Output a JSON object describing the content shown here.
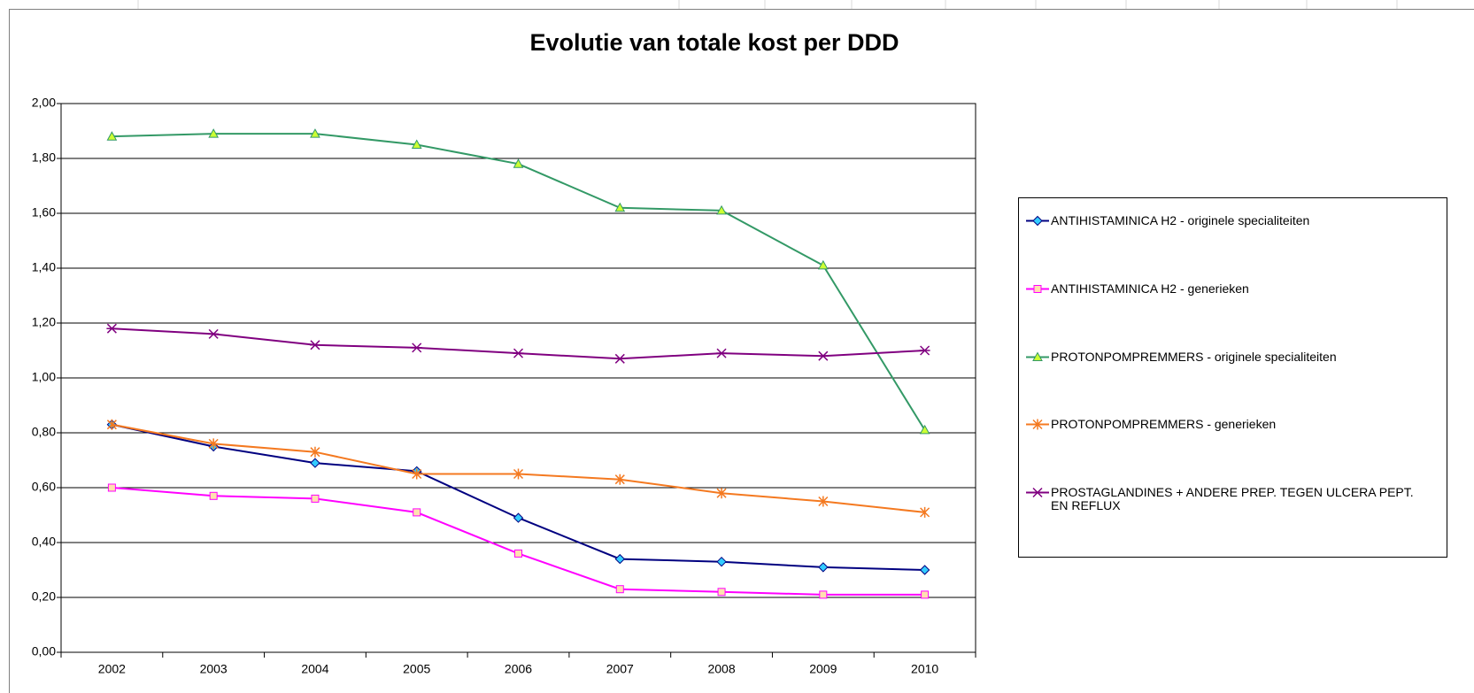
{
  "chart_data": {
    "type": "line",
    "title": "Evolutie van totale kost per DDD",
    "categories": [
      "2002",
      "2003",
      "2004",
      "2005",
      "2006",
      "2007",
      "2008",
      "2009",
      "2010"
    ],
    "series": [
      {
        "name": "ANTIHISTAMINICA H2 - originele specialiteiten",
        "color": "#000080",
        "marker": "diamond",
        "marker_color": "#33ccff",
        "values": [
          0.83,
          0.75,
          0.69,
          0.66,
          0.49,
          0.34,
          0.33,
          0.31,
          0.3
        ]
      },
      {
        "name": "ANTIHISTAMINICA H2 - generieken",
        "color": "#ff00ff",
        "marker": "square",
        "marker_color": "#ffe0b0",
        "values": [
          0.6,
          0.57,
          0.56,
          0.51,
          0.36,
          0.23,
          0.22,
          0.21,
          0.21
        ]
      },
      {
        "name": "PROTONPOMPREMMERS - originele specialiteiten",
        "color": "#339966",
        "marker": "triangle",
        "marker_color": "#ccff33",
        "values": [
          1.88,
          1.89,
          1.89,
          1.85,
          1.78,
          1.62,
          1.61,
          1.41,
          0.81
        ]
      },
      {
        "name": "PROTONPOMPREMMERS - generieken",
        "color": "#f47920",
        "marker": "star",
        "marker_color": "#f47920",
        "values": [
          0.83,
          0.76,
          0.73,
          0.65,
          0.65,
          0.63,
          0.58,
          0.55,
          0.51
        ]
      },
      {
        "name": "PROSTAGLANDINES + ANDERE PREP. TEGEN ULCERA PEPT. EN REFLUX",
        "color": "#800080",
        "marker": "asterisk",
        "marker_color": "#800080",
        "values": [
          1.18,
          1.16,
          1.12,
          1.11,
          1.09,
          1.07,
          1.09,
          1.08,
          1.1
        ]
      }
    ],
    "ylim": [
      0,
      2
    ],
    "yticks": [
      {
        "value": 0,
        "label": "0,00"
      },
      {
        "value": 0.2,
        "label": "0,20"
      },
      {
        "value": 0.4,
        "label": "0,40"
      },
      {
        "value": 0.6,
        "label": "0,60"
      },
      {
        "value": 0.8,
        "label": "0,80"
      },
      {
        "value": 1.0,
        "label": "1,00"
      },
      {
        "value": 1.2,
        "label": "1,20"
      },
      {
        "value": 1.4,
        "label": "1,40"
      },
      {
        "value": 1.6,
        "label": "1,60"
      },
      {
        "value": 1.8,
        "label": "1,80"
      },
      {
        "value": 2.0,
        "label": "2,00"
      }
    ],
    "grid": true,
    "legend": "right"
  }
}
